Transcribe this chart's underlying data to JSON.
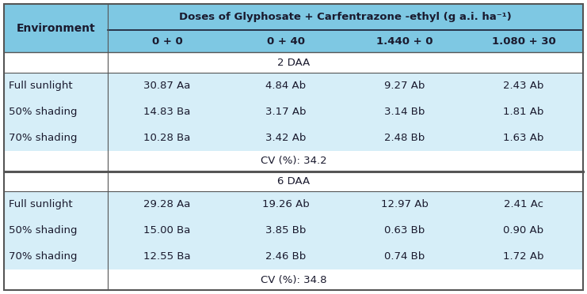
{
  "header_top": "Doses of Glyphosate + Carfentrazone -ethyl (g a.i. ha⁻¹)",
  "col_headers": [
    "0 + 0",
    "0 + 40",
    "1.440 + 0",
    "1.080 + 30"
  ],
  "env_label": "Environment",
  "section1_label": "2 DAA",
  "section2_label": "6 DAA",
  "cv1": "CV (%): 34.2",
  "cv2": "CV (%): 34.8",
  "rows_sec1": [
    [
      "Full sunlight",
      "30.87 Aa",
      "4.84 Ab",
      "9.27 Ab",
      "2.43 Ab"
    ],
    [
      "50% shading",
      "14.83 Ba",
      "3.17 Ab",
      "3.14 Bb",
      "1.81 Ab"
    ],
    [
      "70% shading",
      "10.28 Ba",
      "3.42 Ab",
      "2.48 Bb",
      "1.63 Ab"
    ]
  ],
  "rows_sec2": [
    [
      "Full sunlight",
      "29.28 Aa",
      "19.26 Ab",
      "12.97 Ab",
      "2.41 Ac"
    ],
    [
      "50% shading",
      "15.00 Ba",
      "3.85 Bb",
      "0.63 Bb",
      "0.90 Ab"
    ],
    [
      "70% shading",
      "12.55 Ba",
      "2.46 Bb",
      "0.74 Bb",
      "1.72 Ab"
    ]
  ],
  "bg_header": "#7ec8e3",
  "bg_row_light": "#d6eef8",
  "bg_white": "#ffffff",
  "text_color": "#1a1a2e",
  "border_color": "#555555",
  "outer_border": "#555555",
  "col_width_ratios": [
    131,
    150,
    150,
    150,
    150
  ],
  "row_height_ratios": [
    28,
    24,
    22,
    28,
    28,
    28,
    22,
    22,
    28,
    28,
    28,
    22
  ],
  "font_size": 9.5
}
